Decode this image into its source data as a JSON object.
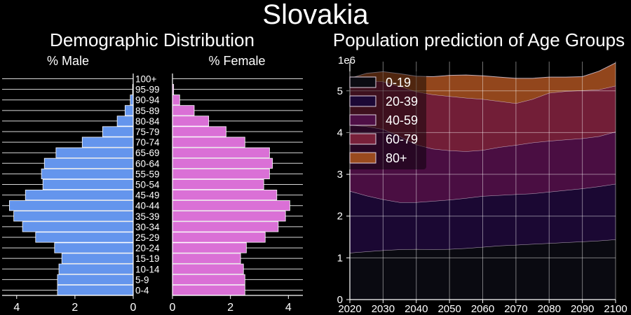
{
  "figure": {
    "title": "Slovakia"
  },
  "colors": {
    "background": "#000000",
    "male_bar": "#6495ED",
    "female_bar": "#DA70D6",
    "axis": "#ffffff",
    "grid": "#ffffff"
  },
  "chart_data": [
    {
      "type": "bar",
      "orientation": "horizontal",
      "title": "Demographic Distribution",
      "categories": [
        "0-4",
        "5-9",
        "10-14",
        "15-19",
        "20-24",
        "25-29",
        "30-34",
        "35-39",
        "40-44",
        "45-49",
        "50-54",
        "55-59",
        "60-64",
        "65-69",
        "70-74",
        "75-79",
        "80-84",
        "85-89",
        "90-94",
        "95-99",
        "100+"
      ],
      "series": [
        {
          "name": "% Male",
          "values": [
            2.6,
            2.6,
            2.55,
            2.45,
            2.7,
            3.35,
            3.8,
            4.1,
            4.25,
            3.7,
            3.1,
            3.15,
            3.05,
            2.65,
            1.75,
            1.05,
            0.55,
            0.28,
            0.1,
            0.02,
            0.0
          ]
        },
        {
          "name": "% Female",
          "values": [
            2.5,
            2.5,
            2.45,
            2.35,
            2.55,
            3.2,
            3.65,
            3.9,
            4.05,
            3.6,
            3.15,
            3.35,
            3.45,
            3.35,
            2.5,
            1.85,
            1.25,
            0.75,
            0.25,
            0.04,
            0.0
          ]
        }
      ],
      "male_xlim": [
        4.5,
        0
      ],
      "female_xlim": [
        0,
        4.5
      ],
      "male_ticks": [
        4,
        2,
        0
      ],
      "female_ticks": [
        0,
        2,
        4
      ],
      "grid": true
    },
    {
      "type": "area",
      "stacked": true,
      "title": "Population prediction of Age Groups",
      "y_multiplier_label": "1e6",
      "x": [
        2020,
        2025,
        2030,
        2035,
        2040,
        2045,
        2050,
        2055,
        2060,
        2065,
        2070,
        2075,
        2080,
        2085,
        2090,
        2095,
        2100
      ],
      "series": [
        {
          "name": "0-19",
          "color": "#0b0b12",
          "values": [
            1.12,
            1.15,
            1.18,
            1.2,
            1.21,
            1.2,
            1.21,
            1.23,
            1.26,
            1.29,
            1.31,
            1.33,
            1.35,
            1.37,
            1.39,
            1.41,
            1.44
          ]
        },
        {
          "name": "20-39",
          "color": "#1c0836",
          "values": [
            1.48,
            1.34,
            1.22,
            1.13,
            1.12,
            1.16,
            1.18,
            1.2,
            1.22,
            1.21,
            1.21,
            1.21,
            1.23,
            1.25,
            1.27,
            1.3,
            1.33
          ]
        },
        {
          "name": "40-59",
          "color": "#4e0f46",
          "values": [
            1.58,
            1.66,
            1.68,
            1.58,
            1.38,
            1.25,
            1.18,
            1.12,
            1.1,
            1.15,
            1.18,
            1.22,
            1.22,
            1.21,
            1.2,
            1.2,
            1.25
          ]
        },
        {
          "name": "60-79",
          "color": "#78203a",
          "values": [
            0.97,
            1.09,
            1.14,
            1.2,
            1.27,
            1.3,
            1.3,
            1.28,
            1.22,
            1.1,
            1.0,
            1.04,
            1.15,
            1.16,
            1.15,
            1.12,
            1.1
          ]
        },
        {
          "name": "80+",
          "color": "#9a4a1e",
          "values": [
            0.15,
            0.18,
            0.24,
            0.3,
            0.37,
            0.43,
            0.5,
            0.55,
            0.56,
            0.58,
            0.6,
            0.5,
            0.38,
            0.34,
            0.33,
            0.44,
            0.55
          ]
        }
      ],
      "xlim": [
        2020,
        2100
      ],
      "ylim": [
        0,
        5.7
      ],
      "xticks": [
        2020,
        2030,
        2040,
        2050,
        2060,
        2070,
        2080,
        2090,
        2100
      ],
      "yticks": [
        0,
        1,
        2,
        3,
        4,
        5
      ],
      "legend_position": "top-left",
      "grid": true
    }
  ]
}
